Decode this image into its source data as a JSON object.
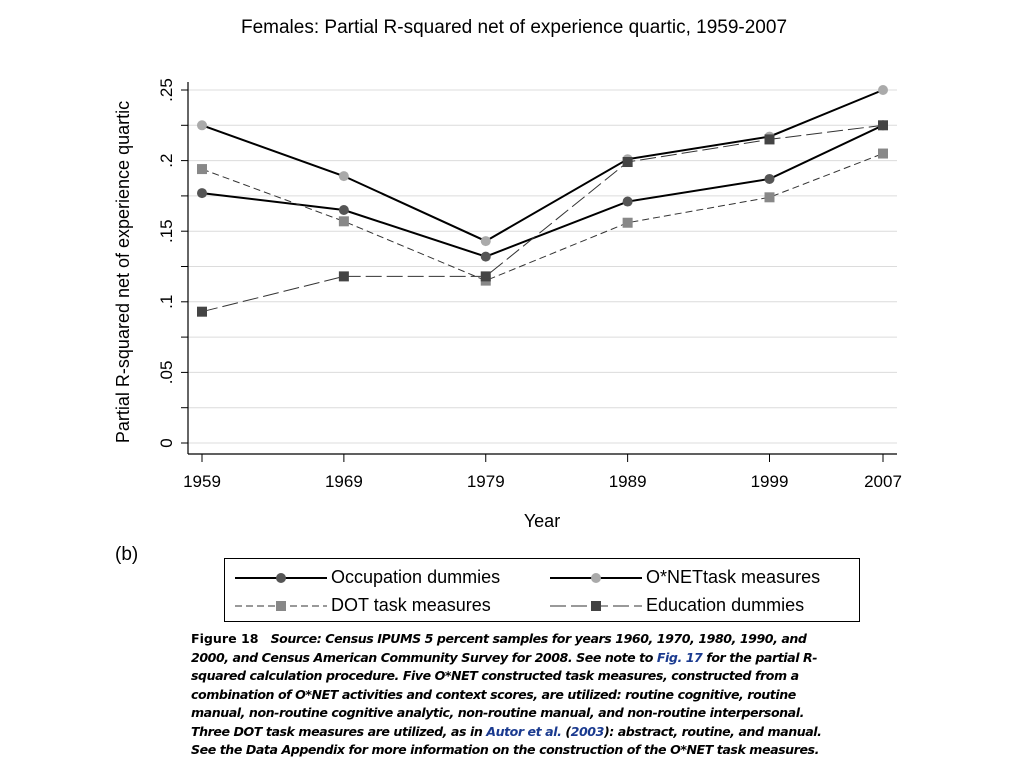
{
  "chart_data": {
    "type": "line",
    "title": "Females: Partial R-squared net of experience quartic, 1959-2007",
    "xlabel": "Year",
    "ylabel": "Partial R-squared net of experience quartic",
    "x": [
      1959,
      1969,
      1979,
      1989,
      1999,
      2007
    ],
    "x_tick_labels": [
      "1959",
      "1969",
      "1979",
      "1989",
      "1999",
      "2007"
    ],
    "ylim": [
      0,
      0.25
    ],
    "y_ticks": [
      0,
      0.05,
      0.1,
      0.15,
      0.2,
      0.25
    ],
    "y_tick_labels": [
      "0",
      ".05",
      ".1",
      ".15",
      ".2",
      ".25"
    ],
    "grid": true,
    "series": [
      {
        "name": "Occupation dummies",
        "values": [
          0.177,
          0.165,
          0.132,
          0.171,
          0.187,
          0.225
        ],
        "color": "#555555",
        "line_color": "#000000",
        "marker": "circle",
        "dash": "solid"
      },
      {
        "name": "O*NET task measures",
        "values": [
          0.225,
          0.189,
          0.143,
          0.201,
          0.217,
          0.25
        ],
        "color": "#aaaaaa",
        "line_color": "#000000",
        "marker": "circle",
        "dash": "solid"
      },
      {
        "name": "DOT task measures",
        "values": [
          0.194,
          0.157,
          0.115,
          0.156,
          0.174,
          0.205
        ],
        "color": "#888888",
        "line_color": "#333333",
        "marker": "square",
        "dash": "short"
      },
      {
        "name": "Education dummies",
        "values": [
          0.093,
          0.118,
          0.118,
          0.199,
          0.215,
          0.225
        ],
        "color": "#444444",
        "line_color": "#333333",
        "marker": "square",
        "dash": "long"
      }
    ]
  },
  "panel_label": "(b)",
  "legend": {
    "items": [
      {
        "words": [
          "Occupation",
          "dummies"
        ]
      },
      {
        "words": [
          "O*NET",
          "task",
          "measures"
        ]
      },
      {
        "words": [
          "DOT",
          "task",
          "measures"
        ]
      },
      {
        "words": [
          "Education",
          "dummies"
        ]
      }
    ]
  },
  "caption": {
    "label": "Figure 18",
    "text_1": "Source: Census IPUMS 5 percent samples for years 1960, 1970, 1980, 1990, and 2000, and Census American Community Survey for 2008. See note to ",
    "link_1": "Fig. 17",
    "text_2": " for the partial R-squared calculation procedure. Five O*NET constructed task measures, constructed from a combination of O*NET activities and context scores, are utilized: routine cognitive, routine manual, non-routine cognitive analytic, non-routine manual, and non-routine interpersonal. Three DOT task measures are utilized, as in ",
    "link_2": "Autor et al.",
    "text_3": " (",
    "link_3": "2003",
    "text_4": "): abstract, routine, and manual. See the Data Appendix for more information on the construction of the O*NET task measures."
  }
}
